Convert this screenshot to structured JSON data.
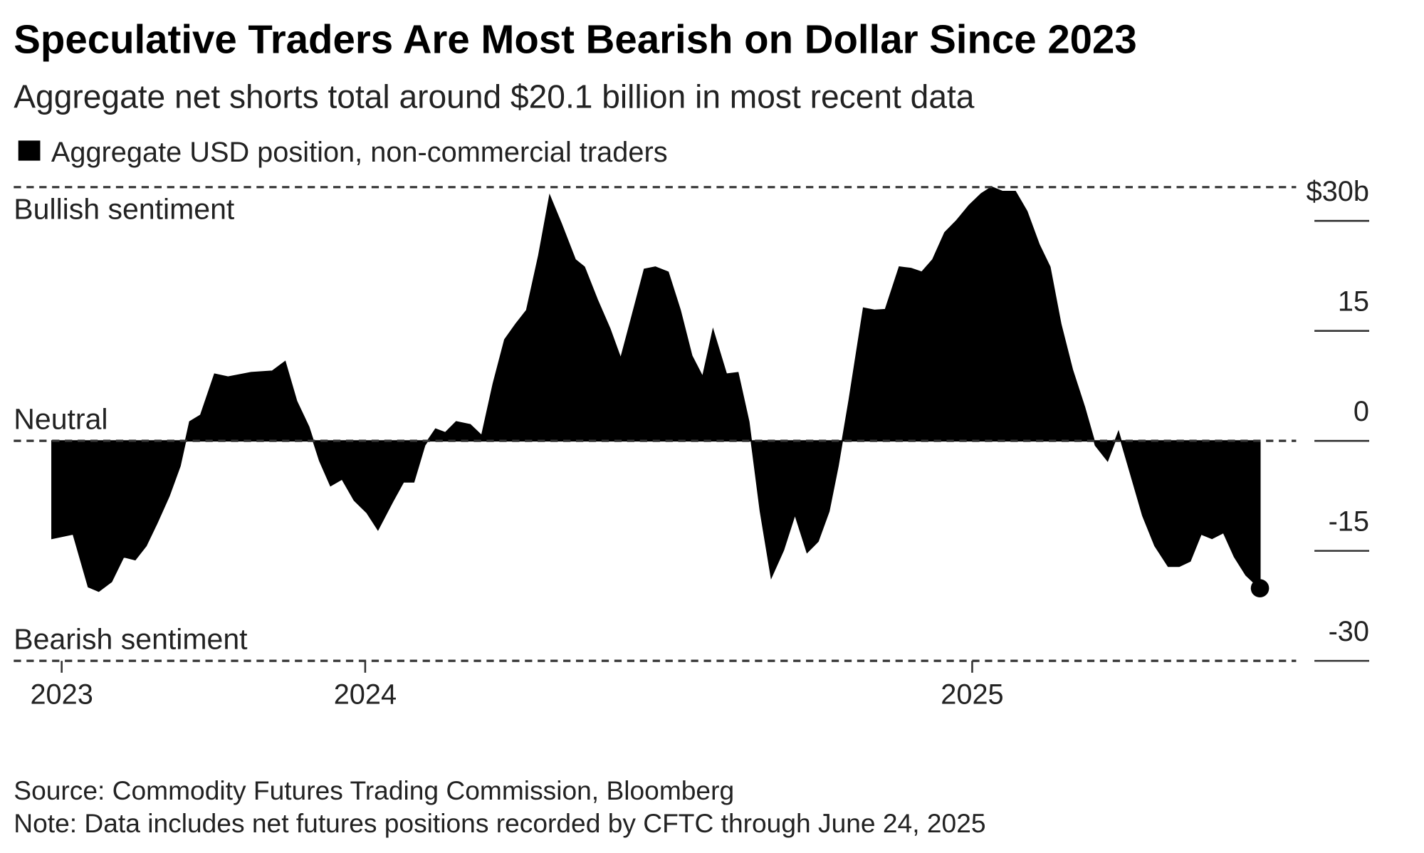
{
  "chart_data": {
    "type": "area",
    "title": "Speculative Traders Are Most Bearish on Dollar Since 2023",
    "subtitle": "Aggregate net shorts total around $20.1 billion in most recent data",
    "annotations": [
      "Bullish sentiment",
      "Neutral",
      "Bearish sentiment"
    ],
    "source": "Source: Commodity Futures Trading Commission, Bloomberg",
    "note": "Note: Data includes net futures positions recorded by CFTC through June 24, 2025",
    "xlim": [
      2023.421,
      2025.654
    ],
    "xticks": [
      {
        "value": 2023.5,
        "label": "2023"
      },
      {
        "value": 2024,
        "label": "2024"
      },
      {
        "value": 2025,
        "label": "2025"
      }
    ],
    "ylim": [
      -30,
      34.6
    ],
    "yticks": [
      {
        "value": 30,
        "label": "$30b"
      },
      15,
      0,
      -15,
      -30
    ],
    "x": [
      2023.484,
      2023.519,
      2023.544,
      2023.561,
      2023.582,
      2023.602,
      2023.621,
      2023.639,
      2023.657,
      2023.677,
      2023.695,
      2023.711,
      2023.729,
      2023.752,
      2023.774,
      2023.812,
      2023.847,
      2023.868,
      2023.887,
      2023.907,
      2023.925,
      2023.943,
      2023.962,
      2023.982,
      2024.003,
      2024.021,
      2024.045,
      2024.063,
      2024.08,
      2024.098,
      2024.116,
      2024.132,
      2024.15,
      2024.173,
      2024.192,
      2024.211,
      2024.23,
      2024.248,
      2024.266,
      2024.286,
      2024.304,
      2024.323,
      2024.346,
      2024.361,
      2024.383,
      2024.403,
      2024.421,
      2024.439,
      2024.46,
      2024.478,
      2024.499,
      2024.519,
      2024.538,
      2024.556,
      2024.573,
      2024.595,
      2024.614,
      2024.632,
      2024.651,
      2024.669,
      2024.689,
      2024.708,
      2024.728,
      2024.746,
      2024.764,
      2024.779,
      2024.797,
      2024.821,
      2024.839,
      2024.857,
      2024.88,
      2024.899,
      2024.917,
      2024.935,
      2024.955,
      2024.974,
      2024.995,
      2025.015,
      2025.032,
      2025.05,
      2025.071,
      2025.09,
      2025.11,
      2025.128,
      2025.146,
      2025.165,
      2025.185,
      2025.203,
      2025.223,
      2025.241,
      2025.26,
      2025.281,
      2025.301,
      2025.323,
      2025.341,
      2025.359,
      2025.377,
      2025.395,
      2025.414,
      2025.432,
      2025.451,
      2025.474
    ],
    "series": [
      {
        "name": "Aggregate USD position, non-commercial traders",
        "color": "#000000",
        "values": [
          -13.3,
          -12.7,
          -19.9,
          -20.5,
          -19.2,
          -15.8,
          -16.2,
          -14.3,
          -11.2,
          -7.5,
          -3.4,
          2.6,
          3.5,
          9.1,
          8.7,
          9.3,
          9.5,
          10.8,
          5.4,
          1.9,
          -2.7,
          -6.1,
          -5.2,
          -8.1,
          -9.8,
          -12.1,
          -8.3,
          -5.6,
          -5.6,
          -0.6,
          1.6,
          1.1,
          2.6,
          2.2,
          0.7,
          7.8,
          13.8,
          15.9,
          17.8,
          25.3,
          33.4,
          29.6,
          24.7,
          23.7,
          19.1,
          15.3,
          11.2,
          16.8,
          23.4,
          23.7,
          23.0,
          17.8,
          11.6,
          8.7,
          15.1,
          9.1,
          9.3,
          2.6,
          -9.6,
          -18.6,
          -14.9,
          -10.0,
          -15.2,
          -13.7,
          -9.6,
          -3.4,
          5.4,
          18.1,
          17.8,
          17.9,
          23.7,
          23.5,
          23.0,
          24.7,
          28.4,
          30.0,
          32.1,
          33.7,
          34.6,
          34.0,
          34.0,
          31.3,
          26.8,
          23.7,
          15.9,
          9.7,
          4.6,
          -0.6,
          -2.7,
          1.2,
          -4.2,
          -10.2,
          -14.3,
          -17.1,
          -17.1,
          -16.4,
          -12.7,
          -13.3,
          -12.5,
          -15.8,
          -18.3,
          -20.1
        ]
      }
    ]
  }
}
